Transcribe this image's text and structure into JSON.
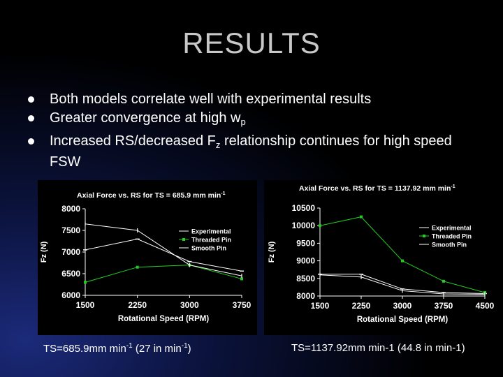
{
  "slide": {
    "title": "RESULTS",
    "bullets": [
      {
        "text": "Both models correlate well with experimental results",
        "sub": "",
        "after": ""
      },
      {
        "text": "Greater convergence at high w",
        "sub": "p",
        "after": ""
      },
      {
        "text": "Increased RS/decreased F",
        "sub": "z",
        "after": " relationship continues for high speed FSW"
      }
    ],
    "caption_left": {
      "prefix": "TS=685.9mm min",
      "sup1": "-1",
      "middle": " (27 in min",
      "sup2": "-1",
      "suffix": ")"
    },
    "caption_right": "TS=1137.92mm min-1 (44.8 in min-1)"
  },
  "chart_data": [
    {
      "type": "line",
      "title": "Axial Force vs. RS for TS = 685.9 mm min",
      "title_sup": "-1",
      "xlabel": "Rotational Speed (RPM)",
      "ylabel": "Fz (N)",
      "x": [
        1500,
        2250,
        3000,
        3750
      ],
      "xticks": [
        "1500",
        "2250",
        "3000",
        "3750"
      ],
      "xlim": [
        1500,
        3750
      ],
      "ylim": [
        6000,
        8000
      ],
      "yticks": [
        "6000",
        "6500",
        "7000",
        "7500",
        "8000"
      ],
      "legend_position": "right",
      "series": [
        {
          "name": "Experimental",
          "color": "#ffffff",
          "marker": "dash",
          "values": [
            7050,
            7300,
            6780,
            6560
          ]
        },
        {
          "name": "Threaded Pin",
          "color": "#22cc22",
          "marker": "square",
          "values": [
            6300,
            6650,
            6700,
            6380
          ]
        },
        {
          "name": "Smooth Pin",
          "color": "#ffffff",
          "marker": "tick",
          "values": [
            7650,
            7500,
            6700,
            6450
          ]
        }
      ]
    },
    {
      "type": "line",
      "title": "Axial Force vs. RS for TS = 1137.92 mm min",
      "title_sup": "-1",
      "xlabel": "Rotational Speed (RPM)",
      "ylabel": "Fz (N)",
      "x": [
        1500,
        2250,
        3000,
        3750,
        4500
      ],
      "xticks": [
        "1500",
        "2250",
        "3000",
        "3750",
        "4500"
      ],
      "xlim": [
        1500,
        4500
      ],
      "ylim": [
        8000,
        10500
      ],
      "yticks": [
        "8000",
        "8500",
        "9000",
        "9500",
        "10000",
        "10500"
      ],
      "legend_position": "right",
      "series": [
        {
          "name": "Experimental",
          "color": "#ffffff",
          "marker": "dash",
          "values": [
            8620,
            8620,
            8200,
            8100,
            8070
          ]
        },
        {
          "name": "Threaded Pin",
          "color": "#22cc22",
          "marker": "square",
          "values": [
            10000,
            10250,
            9000,
            8420,
            8100
          ]
        },
        {
          "name": "Smooth Pin",
          "color": "#ffffff",
          "marker": "tick",
          "values": [
            8600,
            8540,
            8150,
            8060,
            8050
          ]
        }
      ]
    }
  ]
}
